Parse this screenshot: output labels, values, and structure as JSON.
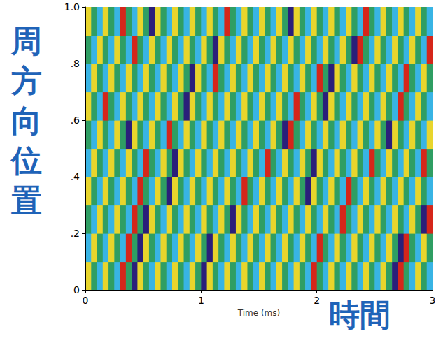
{
  "chart_data": {
    "type": "heatmap",
    "x_label": "Time (ms)",
    "y_label": "周方向位置",
    "annotations": [
      "時間"
    ],
    "xlim": [
      0,
      3
    ],
    "xticks": [
      0,
      1,
      2,
      3
    ],
    "ylim": [
      0,
      1
    ],
    "yticks": [
      0,
      {
        "value": 0.2,
        "label": ".2"
      },
      {
        "value": 0.4,
        "label": ".4"
      },
      {
        "value": 0.6,
        "label": ".6"
      },
      {
        "value": 0.8,
        "label": ".8"
      },
      {
        "value": 1,
        "label": "1.0"
      }
    ],
    "value_range": [
      -2,
      2
    ],
    "x": [
      0.025,
      0.075,
      0.125,
      0.175,
      0.225,
      0.275,
      0.325,
      0.375,
      0.425,
      0.475,
      0.525,
      0.575,
      0.625,
      0.675,
      0.725,
      0.775,
      0.825,
      0.875,
      0.925,
      0.975,
      1.025,
      1.075,
      1.125,
      1.175,
      1.225,
      1.275,
      1.325,
      1.375,
      1.425,
      1.475,
      1.525,
      1.575,
      1.625,
      1.675,
      1.725,
      1.775,
      1.825,
      1.875,
      1.925,
      1.975,
      2.025,
      2.075,
      2.125,
      2.175,
      2.225,
      2.275,
      2.325,
      2.375,
      2.425,
      2.475,
      2.525,
      2.575,
      2.625,
      2.675,
      2.725,
      2.775,
      2.825,
      2.875,
      2.925,
      2.975
    ],
    "y": [
      0.05,
      0.15,
      0.25,
      0.35,
      0.45,
      0.55,
      0.65,
      0.75,
      0.85,
      0.95
    ],
    "cells": [
      [
        1,
        0,
        -1,
        1,
        0,
        -1,
        2,
        0,
        -2,
        1,
        0,
        -1,
        1,
        0,
        -1,
        1,
        0,
        -1,
        1,
        0,
        -2,
        1,
        0,
        -1,
        1,
        0,
        -1,
        1,
        0,
        -1,
        1,
        0,
        -1,
        1,
        0,
        -1,
        1,
        0,
        -1,
        2,
        0,
        -1,
        1,
        0,
        -1,
        1,
        0,
        -1,
        1,
        0,
        -1,
        1,
        0,
        -2,
        2,
        0,
        -1,
        1,
        0,
        -1
      ],
      [
        -1,
        1,
        0,
        -1,
        1,
        0,
        -1,
        2,
        0,
        -2,
        1,
        0,
        -1,
        1,
        0,
        -1,
        1,
        0,
        -1,
        1,
        0,
        -2,
        1,
        0,
        -1,
        1,
        0,
        -1,
        1,
        0,
        -1,
        1,
        0,
        -1,
        1,
        0,
        -1,
        1,
        0,
        -1,
        2,
        0,
        -1,
        1,
        0,
        -1,
        1,
        0,
        -1,
        1,
        0,
        -1,
        1,
        0,
        -2,
        2,
        0,
        -1,
        1,
        0
      ],
      [
        0,
        -1,
        1,
        0,
        -1,
        1,
        0,
        -1,
        2,
        0,
        -2,
        1,
        0,
        -1,
        1,
        0,
        -1,
        1,
        0,
        -1,
        1,
        0,
        -1,
        1,
        0,
        -2,
        1,
        0,
        -1,
        1,
        0,
        -1,
        1,
        0,
        -1,
        1,
        0,
        -1,
        1,
        0,
        -1,
        1,
        0,
        -1,
        2,
        0,
        -1,
        1,
        0,
        -1,
        1,
        0,
        -1,
        1,
        0,
        -1,
        1,
        0,
        -2,
        2
      ],
      [
        1,
        0,
        -1,
        1,
        0,
        -1,
        1,
        0,
        -1,
        2,
        0,
        -1,
        1,
        0,
        -2,
        1,
        0,
        -1,
        1,
        0,
        -1,
        1,
        0,
        -1,
        1,
        0,
        -1,
        2,
        0,
        -1,
        1,
        0,
        -1,
        1,
        0,
        -1,
        1,
        0,
        -2,
        1,
        0,
        -1,
        1,
        0,
        -1,
        2,
        0,
        -1,
        1,
        0,
        -1,
        1,
        0,
        -1,
        1,
        0,
        -1,
        1,
        0,
        -1
      ],
      [
        -1,
        1,
        0,
        -1,
        1,
        0,
        -1,
        1,
        0,
        -1,
        2,
        0,
        -1,
        1,
        0,
        -2,
        1,
        0,
        -1,
        1,
        0,
        -1,
        1,
        0,
        -1,
        1,
        0,
        -1,
        1,
        0,
        -1,
        2,
        0,
        -1,
        1,
        0,
        -1,
        1,
        0,
        -2,
        1,
        0,
        -1,
        1,
        0,
        -1,
        1,
        0,
        -1,
        2,
        0,
        -1,
        1,
        0,
        -1,
        1,
        0,
        -1,
        2,
        0
      ],
      [
        0,
        -1,
        1,
        0,
        -1,
        1,
        0,
        -2,
        1,
        0,
        -1,
        1,
        0,
        -1,
        2,
        0,
        -1,
        1,
        0,
        -1,
        1,
        0,
        -1,
        1,
        0,
        -1,
        1,
        0,
        -1,
        1,
        0,
        -1,
        1,
        0,
        -2,
        2,
        0,
        -1,
        1,
        0,
        -1,
        1,
        0,
        -1,
        1,
        0,
        -1,
        1,
        0,
        -1,
        1,
        0,
        -2,
        1,
        0,
        -1,
        1,
        0,
        -1,
        1
      ],
      [
        1,
        0,
        -1,
        2,
        0,
        -1,
        1,
        0,
        -1,
        1,
        0,
        -1,
        1,
        0,
        -1,
        1,
        0,
        -2,
        1,
        0,
        -1,
        1,
        0,
        -1,
        1,
        0,
        -1,
        1,
        0,
        -1,
        1,
        0,
        -1,
        1,
        0,
        -1,
        2,
        0,
        -1,
        1,
        0,
        -2,
        1,
        0,
        -1,
        1,
        0,
        -1,
        1,
        0,
        -1,
        1,
        0,
        -1,
        2,
        0,
        -1,
        1,
        0,
        -1
      ],
      [
        -1,
        1,
        0,
        -1,
        1,
        0,
        -1,
        1,
        0,
        -1,
        1,
        0,
        -1,
        1,
        0,
        -1,
        1,
        0,
        -2,
        1,
        0,
        -1,
        2,
        0,
        -1,
        1,
        0,
        -1,
        1,
        0,
        -1,
        1,
        0,
        -1,
        1,
        0,
        -1,
        1,
        0,
        -1,
        2,
        0,
        -2,
        1,
        0,
        -1,
        1,
        0,
        -1,
        1,
        0,
        -1,
        1,
        0,
        -1,
        2,
        0,
        -1,
        1,
        0
      ],
      [
        0,
        -1,
        1,
        0,
        -1,
        1,
        0,
        -1,
        2,
        0,
        -1,
        1,
        0,
        -1,
        1,
        0,
        -1,
        1,
        0,
        -1,
        1,
        0,
        -2,
        1,
        0,
        -1,
        1,
        0,
        -1,
        1,
        0,
        -1,
        1,
        0,
        -1,
        1,
        0,
        -1,
        1,
        0,
        -1,
        1,
        0,
        -1,
        1,
        0,
        -2,
        2,
        0,
        -1,
        1,
        0,
        -1,
        1,
        0,
        -1,
        1,
        0,
        -1,
        2
      ],
      [
        1,
        0,
        -1,
        1,
        0,
        -1,
        2,
        0,
        -1,
        1,
        0,
        -2,
        1,
        0,
        -1,
        1,
        0,
        -1,
        1,
        0,
        -1,
        1,
        0,
        -1,
        2,
        0,
        -1,
        1,
        0,
        -1,
        1,
        0,
        -1,
        1,
        0,
        -2,
        1,
        0,
        -1,
        1,
        0,
        -1,
        1,
        0,
        -1,
        1,
        0,
        -1,
        2,
        0,
        -1,
        1,
        0,
        -1,
        1,
        0,
        -1,
        1,
        0,
        -1
      ]
    ]
  }
}
